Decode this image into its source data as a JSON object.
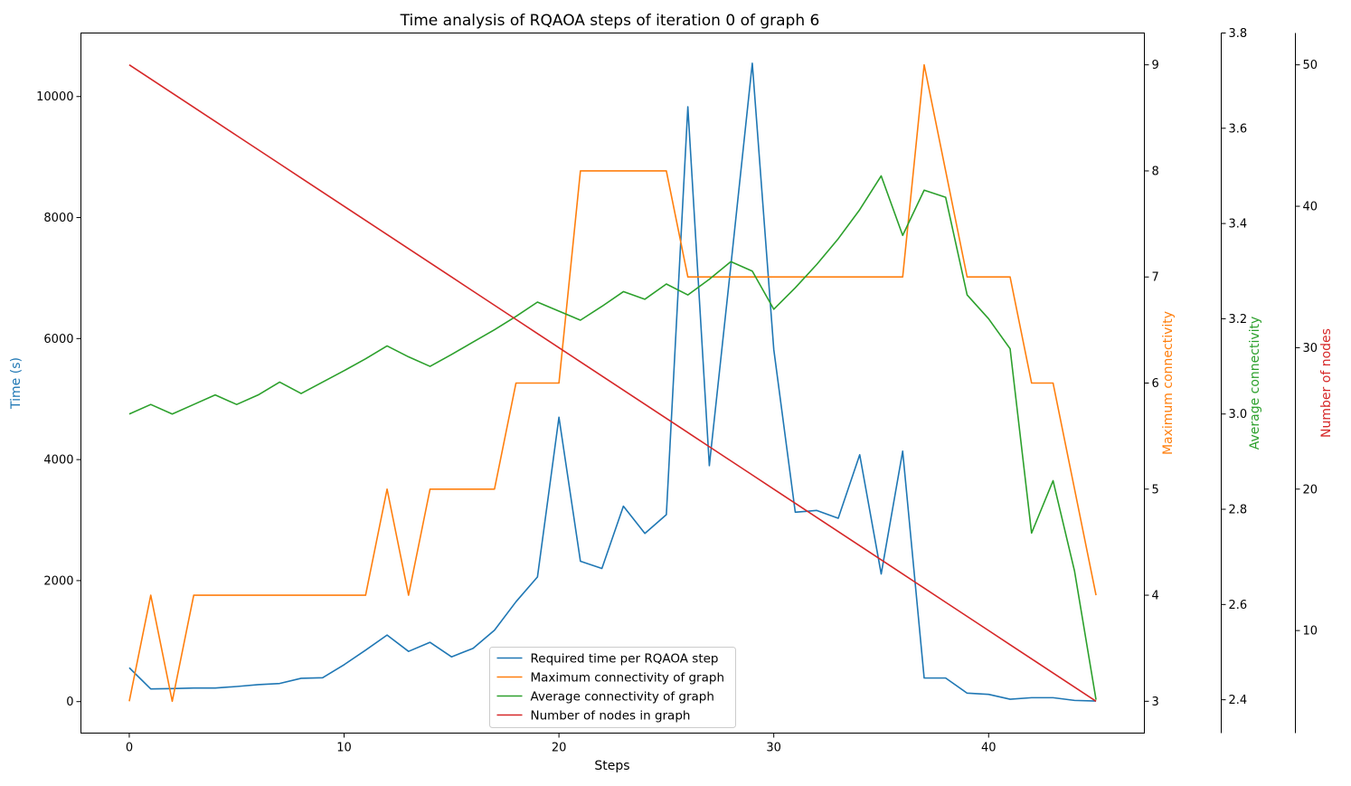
{
  "chart_data": {
    "type": "line",
    "title": "Time analysis of RQAOA steps of iteration 0 of graph 6",
    "xlabel": "Steps",
    "xlim": [
      -2.25,
      47.25
    ],
    "x_ticks": [
      0,
      10,
      20,
      30,
      40
    ],
    "x": [
      0,
      1,
      2,
      3,
      4,
      5,
      6,
      7,
      8,
      9,
      10,
      11,
      12,
      13,
      14,
      15,
      16,
      17,
      18,
      19,
      20,
      21,
      22,
      23,
      24,
      25,
      26,
      27,
      28,
      29,
      30,
      31,
      32,
      33,
      34,
      35,
      36,
      37,
      38,
      39,
      40,
      41,
      42,
      43,
      44,
      45
    ],
    "legend_position": "bottom-center",
    "grid": false,
    "axes": [
      {
        "id": "time",
        "label": "Time (s)",
        "side": "left",
        "color": "#1f77b4",
        "lim": [
          -520,
          11050
        ],
        "ticks": [
          0,
          2000,
          4000,
          6000,
          8000,
          10000
        ]
      },
      {
        "id": "maxconn",
        "label": "Maximum connectivity",
        "side": "right",
        "color": "#ff7f0e",
        "lim": [
          2.7,
          9.3
        ],
        "ticks": [
          3,
          4,
          5,
          6,
          7,
          8,
          9
        ]
      },
      {
        "id": "avgconn",
        "label": "Average connectivity",
        "side": "right",
        "color": "#2ca02c",
        "lim": [
          2.33,
          3.8
        ],
        "ticks": [
          2.4,
          2.6,
          2.8,
          3.0,
          3.2,
          3.4,
          3.6,
          3.8
        ],
        "tick_labels": [
          "2.4",
          "2.6",
          "2.8",
          "3.0",
          "3.2",
          "3.4",
          "3.6",
          "3.8"
        ]
      },
      {
        "id": "nodes",
        "label": "Number of nodes",
        "side": "right",
        "color": "#d62728",
        "lim": [
          2.75,
          52.25
        ],
        "ticks": [
          10,
          20,
          30,
          40,
          50
        ]
      }
    ],
    "series": [
      {
        "name": "Required time per RQAOA step",
        "axis": "time",
        "color": "#1f77b4",
        "values": [
          560,
          210,
          215,
          225,
          225,
          250,
          280,
          300,
          385,
          395,
          610,
          850,
          1100,
          830,
          980,
          740,
          880,
          1180,
          1650,
          2060,
          4700,
          2320,
          2200,
          3230,
          2780,
          3090,
          9830,
          3900,
          7200,
          10550,
          5820,
          3130,
          3160,
          3030,
          4080,
          2110,
          4140,
          390,
          390,
          140,
          120,
          40,
          65,
          65,
          20,
          10
        ]
      },
      {
        "name": "Maximum connectivity of graph",
        "axis": "maxconn",
        "color": "#ff7f0e",
        "values": [
          3,
          4,
          3,
          4,
          4,
          4,
          4,
          4,
          4,
          4,
          4,
          4,
          5,
          4,
          5,
          5,
          5,
          5,
          6,
          6,
          6,
          8,
          8,
          8,
          8,
          8,
          7,
          7,
          7,
          7,
          7,
          7,
          7,
          7,
          7,
          7,
          7,
          9,
          8,
          7,
          7,
          7,
          6,
          6,
          5,
          4
        ]
      },
      {
        "name": "Average connectivity of graph",
        "axis": "avgconn",
        "color": "#2ca02c",
        "values": [
          3.0,
          3.02,
          3.0,
          3.02,
          3.04,
          3.02,
          3.04,
          3.067,
          3.043,
          3.067,
          3.091,
          3.116,
          3.143,
          3.12,
          3.1,
          3.125,
          3.151,
          3.177,
          3.205,
          3.235,
          3.216,
          3.197,
          3.226,
          3.257,
          3.241,
          3.273,
          3.25,
          3.283,
          3.32,
          3.3,
          3.22,
          3.265,
          3.314,
          3.368,
          3.429,
          3.5,
          3.375,
          3.47,
          3.455,
          3.25,
          3.2,
          3.137,
          2.75,
          2.86,
          2.67,
          2.4
        ]
      },
      {
        "name": "Number of nodes in graph",
        "axis": "nodes",
        "color": "#d62728",
        "values": [
          50,
          49,
          48,
          47,
          46,
          45,
          44,
          43,
          42,
          41,
          40,
          39,
          38,
          37,
          36,
          35,
          34,
          33,
          32,
          31,
          30,
          29,
          28,
          27,
          26,
          25,
          24,
          23,
          22,
          21,
          20,
          19,
          18,
          17,
          16,
          15,
          14,
          13,
          12,
          11,
          10,
          9,
          8,
          7,
          6,
          5
        ]
      }
    ]
  }
}
